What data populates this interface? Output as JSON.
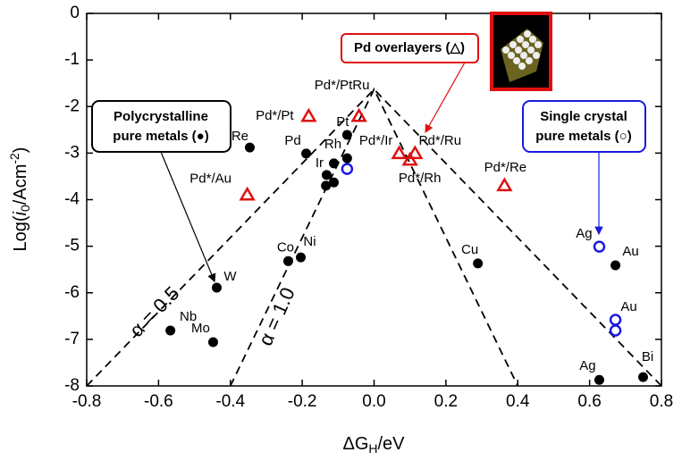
{
  "chart_data": {
    "type": "scatter",
    "xlabel": [
      "ΔG",
      "H",
      "/eV"
    ],
    "ylabel": [
      "Log(",
      "i",
      "0",
      "/Acm",
      "-2",
      ")"
    ],
    "xlim": [
      -0.8,
      0.8
    ],
    "ylim": [
      -8,
      0
    ],
    "xticks": [
      -0.8,
      -0.6,
      -0.4,
      -0.2,
      {
        "value": 0,
        "label": "0.0"
      },
      0.2,
      0.4,
      0.6,
      0.8
    ],
    "yticks": [
      0,
      -1,
      -2,
      -3,
      -4,
      -5,
      -6,
      -7,
      -8
    ],
    "polycrystalline": {
      "color": "#000000",
      "x": [
        -0.346,
        -0.189,
        -0.075,
        -0.075,
        -0.112,
        -0.132,
        -0.134,
        -0.112,
        -0.239,
        -0.204,
        -0.438,
        -0.567,
        -0.448,
        0.289,
        0.672,
        0.627,
        0.749
      ],
      "y": [
        -2.88,
        -3.01,
        -2.61,
        -3.11,
        -3.22,
        -3.47,
        -3.7,
        -3.63,
        -5.32,
        -5.24,
        -5.89,
        -6.81,
        -7.06,
        -5.37,
        -5.41,
        -7.87,
        -7.81
      ],
      "labels": [
        "Re",
        "Pd",
        "Pt",
        null,
        "Rh",
        "Ir",
        null,
        null,
        "Co",
        "Ni",
        "W",
        "Nb",
        "Mo",
        "Cu",
        "Au",
        "Ag",
        "Bi"
      ]
    },
    "single_crystal": {
      "color": "#1a1adf",
      "x": [
        -0.075,
        0.627,
        0.672,
        0.672
      ],
      "y": [
        -3.34,
        -5.01,
        -6.58,
        -6.81
      ],
      "labels": [
        null,
        "Ag",
        "Au",
        null
      ]
    },
    "overlayers": {
      "color": "#e01010",
      "x": [
        -0.182,
        -0.042,
        -0.353,
        0.07,
        0.114,
        0.1,
        0.363
      ],
      "y": [
        -2.21,
        -2.21,
        -3.9,
        -3.01,
        -3.01,
        -3.15,
        -3.7
      ],
      "labels": [
        "Pd*/Pt",
        "Pd*/PtRu",
        "Pd*/Au",
        "Pd*/Ir",
        "Pd*/Ru",
        "Pd*/Rh",
        "Pd*/Re"
      ]
    },
    "lines": [
      {
        "label": "α = 0.5",
        "x": [
          -0.8,
          0,
          0.8
        ],
        "y": [
          -8,
          -1.63,
          -8
        ]
      },
      {
        "label": "α = 1.0",
        "x": [
          -0.4,
          0,
          0.4
        ],
        "y": [
          -8,
          -1.63,
          -8
        ]
      }
    ],
    "annotations": {
      "polycrystalline": [
        "Polycrystalline",
        "pure metals (●)"
      ],
      "single_crystal": [
        "Single crystal",
        "pure metals (○)"
      ],
      "overlayers": [
        "Pd overlayers (△)"
      ]
    }
  }
}
